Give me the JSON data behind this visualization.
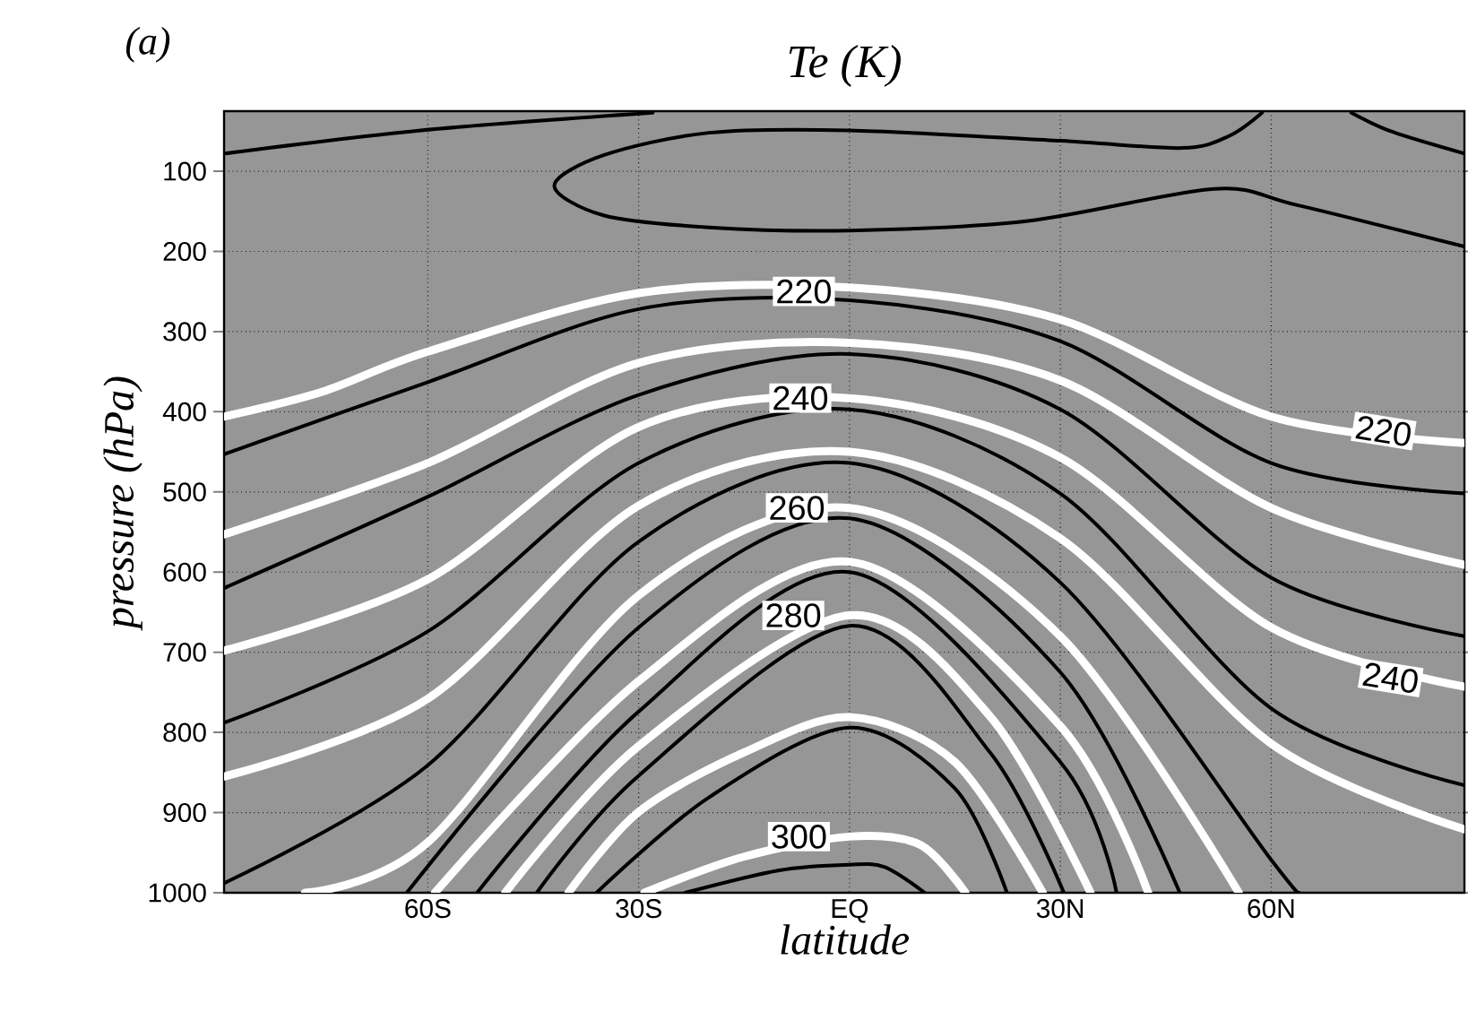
{
  "chart_data": {
    "type": "line",
    "title": "Te (K)",
    "xlabel": "latitude",
    "ylabel": "pressure (hPa)",
    "xlim": [
      -89,
      87.5
    ],
    "ylim": [
      1000,
      25
    ],
    "xticks": [
      {
        "value": -60,
        "label": "60S"
      },
      {
        "value": -30,
        "label": "30S"
      },
      {
        "value": 0,
        "label": "EQ"
      },
      {
        "value": 30,
        "label": "30N"
      },
      {
        "value": 60,
        "label": "60N"
      }
    ],
    "yticks": [
      100,
      200,
      300,
      400,
      500,
      600,
      700,
      800,
      900,
      1000
    ],
    "grid": true,
    "series": [
      {
        "color": "#ffffff",
        "x": [
          -89,
          -75,
          -60,
          -30,
          0,
          30,
          60,
          87.5
        ],
        "values": [
          406,
          375,
          325,
          252,
          245,
          285,
          406,
          439
        ]
      },
      {
        "color": "#ffffff",
        "x": [
          -89,
          -60,
          -30,
          0,
          30,
          60,
          87.5
        ],
        "values": [
          553,
          464,
          339,
          314,
          361,
          520,
          591
        ]
      },
      {
        "color": "#ffffff",
        "x": [
          -89,
          -60,
          -30,
          0,
          30,
          60,
          87.5
        ],
        "values": [
          698,
          609,
          419,
          383,
          457,
          669,
          743
        ]
      },
      {
        "color": "#ffffff",
        "x": [
          -89,
          -60,
          -30,
          0,
          30,
          60,
          87.5
        ],
        "values": [
          855,
          758,
          517,
          450,
          558,
          814,
          921
        ]
      },
      {
        "color": "#ffffff",
        "x": [
          -77.5,
          -60,
          -30,
          0,
          30,
          55.4
        ],
        "values": [
          1000,
          937,
          629,
          520,
          680,
          1000
        ]
      },
      {
        "color": "#ffffff",
        "x": [
          -59,
          -30,
          0,
          30,
          42.5
        ],
        "values": [
          1000,
          736,
          587,
          792,
          1000
        ]
      },
      {
        "color": "#ffffff",
        "x": [
          -49,
          -30,
          0,
          20,
          34.3
        ],
        "values": [
          1000,
          817,
          654,
          780,
          1000
        ]
      },
      {
        "color": "#ffffff",
        "x": [
          -40,
          -30,
          -15,
          0,
          15,
          27.5
        ],
        "values": [
          1000,
          899,
          825,
          781,
          837,
          1000
        ]
      },
      {
        "color": "#ffffff",
        "x": [
          -29.2,
          -15,
          0,
          10,
          16.5
        ],
        "values": [
          1000,
          955,
          930,
          940,
          1000
        ]
      },
      {
        "color": "#000000",
        "x": [
          -89,
          -60,
          -30,
          0,
          30,
          60,
          87.5
        ],
        "values": [
          453,
          363,
          272,
          261,
          312,
          464,
          502
        ]
      },
      {
        "color": "#000000",
        "x": [
          -89,
          -60,
          -30,
          0,
          30,
          60,
          87.5
        ],
        "values": [
          620,
          506,
          379,
          328,
          397,
          607,
          680
        ]
      },
      {
        "color": "#000000",
        "x": [
          -89,
          -60,
          -30,
          0,
          30,
          60,
          87.5
        ],
        "values": [
          788,
          674,
          464,
          397,
          502,
          770,
          866
        ]
      },
      {
        "color": "#000000",
        "x": [
          -89,
          -60,
          -30,
          0,
          30,
          60,
          64
        ],
        "values": [
          988,
          841,
          562,
          464,
          613,
          959,
          1000
        ]
      },
      {
        "color": "#000000",
        "x": [
          -63,
          -30,
          0,
          30,
          47
        ],
        "values": [
          1000,
          669,
          533,
          725,
          1000
        ]
      },
      {
        "color": "#000000",
        "x": [
          -53,
          -30,
          0,
          30,
          38
        ],
        "values": [
          1000,
          774,
          600,
          837,
          1000
        ]
      },
      {
        "color": "#000000",
        "x": [
          -44.5,
          -30,
          0,
          20,
          30.5
        ],
        "values": [
          1000,
          854,
          667,
          825,
          1000
        ]
      },
      {
        "color": "#000000",
        "x": [
          -36,
          -20,
          0,
          15,
          22.4
        ],
        "values": [
          1000,
          881,
          794,
          870,
          1000
        ]
      },
      {
        "color": "#000000",
        "x": [
          -23.4,
          -10,
          0,
          5,
          10.7
        ],
        "values": [
          1000,
          972,
          965,
          968,
          1000
        ]
      },
      {
        "color": "#000000",
        "x": [
          58.7,
          54,
          47.3,
          30,
          0,
          -20,
          -35,
          -42,
          -35,
          -20,
          0,
          25.4,
          51.9,
          63.6,
          87.5
        ],
        "values": [
          27,
          56,
          71,
          62,
          49,
          52,
          80,
          118,
          155,
          170,
          174,
          162,
          122,
          142,
          194
        ]
      },
      {
        "color": "#000000",
        "x": [
          71.4,
          77.3,
          87.5
        ],
        "values": [
          27,
          51,
          78
        ]
      },
      {
        "color": "#000000",
        "x": [
          -89,
          -61,
          -28
        ],
        "values": [
          78,
          49,
          27
        ]
      }
    ],
    "annotations": [
      "(a)",
      {
        "text": "220",
        "x": -6.5,
        "y": 250
      },
      {
        "text": "240",
        "x": -7,
        "y": 383
      },
      {
        "text": "260",
        "x": -7.5,
        "y": 520
      },
      {
        "text": "280",
        "x": -8,
        "y": 654
      },
      {
        "text": "300",
        "x": -7.2,
        "y": 930
      },
      {
        "text": "220",
        "x": 76,
        "y": 424
      },
      {
        "text": "240",
        "x": 77,
        "y": 732
      }
    ]
  }
}
